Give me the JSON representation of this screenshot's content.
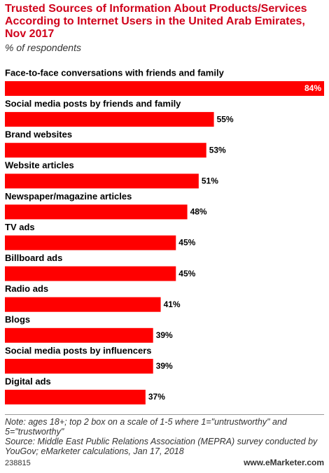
{
  "chart_data": {
    "type": "bar",
    "title": "Trusted Sources of Information About Products/Services According to Internet Users in the United Arab Emirates, Nov 2017",
    "subtitle": "% of respondents",
    "categories": [
      "Face-to-face conversations with friends and family",
      "Social media posts by friends and family",
      "Brand websites",
      "Website articles",
      "Newspaper/magazine articles",
      "TV ads",
      "Billboard ads",
      "Radio ads",
      "Blogs",
      "Social media posts by influencers",
      "Digital ads"
    ],
    "values": [
      84,
      55,
      53,
      51,
      48,
      45,
      45,
      41,
      39,
      39,
      37
    ],
    "value_labels": [
      "84%",
      "55%",
      "53%",
      "51%",
      "48%",
      "45%",
      "45%",
      "41%",
      "39%",
      "39%",
      "37%"
    ],
    "color": "#ff0000",
    "note": "Note: ages 18+; top 2 box on a scale of 1-5 where 1=\"untrustworthy\" and 5=\"trustworthy\"",
    "source": "Source: Middle East Public Relations Association (MEPRA) survey conducted by YouGov; eMarketer calculations, Jan 17, 2018",
    "chart_id": "238815",
    "logo": "www.eMarketer.com"
  }
}
